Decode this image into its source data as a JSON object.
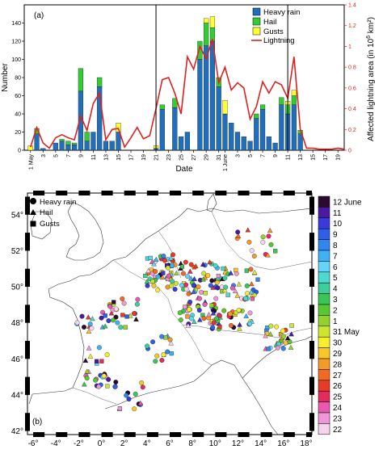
{
  "colors": {
    "heavy_rain": "#1f6fbd",
    "hail": "#33cc33",
    "gusts": "#ffff33",
    "lightning": "#e02020"
  },
  "panel_a": {
    "label": "(a)",
    "xlabel": "Date",
    "ylabel_left": "Number",
    "ylabel_right_prefix": "Affected lightning area (in 10",
    "ylabel_right_exp": "6",
    "ylabel_right_suffix": " km²)",
    "legend": [
      "Heavy rain",
      "Hail",
      "Gusts",
      "Lightning"
    ],
    "x_ticks": [
      {
        "day": 1,
        "label": "1 May"
      },
      {
        "day": 3,
        "label": "3"
      },
      {
        "day": 5,
        "label": "5"
      },
      {
        "day": 7,
        "label": "7"
      },
      {
        "day": 9,
        "label": "9"
      },
      {
        "day": 11,
        "label": "11"
      },
      {
        "day": 13,
        "label": "13"
      },
      {
        "day": 15,
        "label": "15"
      },
      {
        "day": 17,
        "label": "17"
      },
      {
        "day": 19,
        "label": "19"
      },
      {
        "day": 21,
        "label": "21"
      },
      {
        "day": 23,
        "label": "23"
      },
      {
        "day": 25,
        "label": "25"
      },
      {
        "day": 27,
        "label": "27"
      },
      {
        "day": 29,
        "label": "29"
      },
      {
        "day": 31,
        "label": "31"
      },
      {
        "day": 32,
        "label": "1 June"
      },
      {
        "day": 34,
        "label": "3"
      },
      {
        "day": 36,
        "label": "5"
      },
      {
        "day": 38,
        "label": "7"
      },
      {
        "day": 40,
        "label": "9"
      },
      {
        "day": 42,
        "label": "11"
      },
      {
        "day": 44,
        "label": "13"
      },
      {
        "day": 46,
        "label": "15"
      },
      {
        "day": 48,
        "label": "17"
      },
      {
        "day": 50,
        "label": "19"
      }
    ],
    "y_left_ticks": [
      "0",
      "20",
      "40",
      "60",
      "80",
      "100",
      "120",
      "140"
    ],
    "y_right_ticks": [
      "0",
      "0.2",
      "0.4",
      "0.6",
      "0.8",
      "1",
      "1.2",
      "1.4"
    ]
  },
  "chart_data": {
    "type": "bar",
    "stacked": true,
    "x_unit": "day since 1 May (32 = 1 June)",
    "days": [
      1,
      2,
      3,
      4,
      5,
      6,
      7,
      8,
      9,
      10,
      11,
      12,
      13,
      14,
      15,
      16,
      17,
      18,
      19,
      20,
      21,
      22,
      23,
      24,
      25,
      26,
      27,
      28,
      29,
      30,
      31,
      32,
      33,
      34,
      35,
      36,
      37,
      38,
      39,
      40,
      41,
      42,
      43,
      44,
      45,
      46,
      47,
      48,
      49,
      50,
      51
    ],
    "series": [
      {
        "name": "Heavy rain",
        "values": [
          0,
          18,
          2,
          0,
          8,
          10,
          6,
          6,
          65,
          10,
          20,
          70,
          10,
          10,
          20,
          0,
          0,
          0,
          0,
          0,
          2,
          45,
          0,
          47,
          15,
          20,
          0,
          100,
          115,
          120,
          70,
          40,
          30,
          20,
          15,
          10,
          35,
          45,
          15,
          8,
          50,
          40,
          50,
          18,
          0,
          0,
          0,
          0,
          0,
          0,
          0
        ]
      },
      {
        "name": "Hail",
        "values": [
          0,
          6,
          0,
          0,
          0,
          2,
          4,
          2,
          25,
          10,
          0,
          10,
          0,
          0,
          0,
          0,
          0,
          0,
          0,
          0,
          0,
          5,
          0,
          10,
          0,
          0,
          0,
          20,
          25,
          15,
          10,
          0,
          0,
          0,
          0,
          0,
          5,
          5,
          0,
          0,
          8,
          10,
          10,
          4,
          0,
          0,
          0,
          0,
          0,
          0,
          0
        ]
      },
      {
        "name": "Gusts",
        "values": [
          5,
          0,
          0,
          0,
          0,
          0,
          0,
          0,
          0,
          0,
          0,
          0,
          0,
          0,
          10,
          0,
          0,
          0,
          0,
          0,
          3,
          0,
          0,
          0,
          0,
          0,
          0,
          0,
          5,
          12,
          0,
          15,
          0,
          0,
          0,
          0,
          0,
          0,
          0,
          0,
          0,
          4,
          6,
          0,
          0,
          0,
          0,
          0,
          0,
          0,
          0
        ]
      }
    ],
    "lightning": {
      "name": "Lightning",
      "axis": "right",
      "values": [
        0.03,
        0.22,
        0.07,
        0.02,
        0.12,
        0.15,
        0.12,
        0.1,
        0.33,
        0.19,
        0.45,
        0.55,
        0.1,
        0.2,
        0.21,
        0.03,
        0.12,
        0.22,
        0.11,
        0.14,
        0.4,
        0.68,
        0.7,
        0.55,
        0.35,
        0.9,
        0.78,
        1.0,
        0.88,
        1.07,
        0.65,
        0.8,
        0.58,
        0.65,
        0.6,
        0.3,
        0.42,
        0.66,
        0.55,
        0.66,
        0.63,
        0.5,
        0.9,
        0.2,
        0.02,
        0.02,
        0.01,
        0.01,
        0.01,
        0.02,
        0.01
      ]
    },
    "ylim": [
      0,
      160
    ],
    "y_right_lim": [
      0,
      1.4
    ],
    "vlines_days": [
      21,
      42
    ]
  },
  "panel_b": {
    "label": "(b)",
    "legend": [
      "Heavy rain",
      "Hail",
      "Gusts"
    ],
    "lon_ticks": [
      "-6°",
      "-4°",
      "-2°",
      "0°",
      "2°",
      "4°",
      "6°",
      "8°",
      "10°",
      "12°",
      "14°",
      "16°",
      "18°"
    ],
    "lat_ticks": [
      "42°",
      "44°",
      "46°",
      "48°",
      "50°",
      "52°",
      "54°"
    ],
    "colorbar": [
      {
        "label": "12 June",
        "color": "#2a0a2e"
      },
      {
        "label": "11",
        "color": "#4a1aa0"
      },
      {
        "label": "10",
        "color": "#3a3ad8"
      },
      {
        "label": "9",
        "color": "#2f5fe6"
      },
      {
        "label": "8",
        "color": "#2f86ef"
      },
      {
        "label": "7",
        "color": "#3fb1f4"
      },
      {
        "label": "6",
        "color": "#66d3f7"
      },
      {
        "label": "5",
        "color": "#4fd8cf"
      },
      {
        "label": "4",
        "color": "#3ccf9a"
      },
      {
        "label": "3",
        "color": "#3ac657"
      },
      {
        "label": "2",
        "color": "#59c830"
      },
      {
        "label": "1",
        "color": "#92d22a"
      },
      {
        "label": "31 May",
        "color": "#cde52c"
      },
      {
        "label": "30",
        "color": "#f7ee2f"
      },
      {
        "label": "29",
        "color": "#f8c62a"
      },
      {
        "label": "28",
        "color": "#f59a26"
      },
      {
        "label": "27",
        "color": "#f06a24"
      },
      {
        "label": "26",
        "color": "#e83a28"
      },
      {
        "label": "25",
        "color": "#e52a5c"
      },
      {
        "label": "24",
        "color": "#e85ab0"
      },
      {
        "label": "23",
        "color": "#ef98d8"
      },
      {
        "label": "22",
        "color": "#f7d4ee"
      }
    ]
  }
}
